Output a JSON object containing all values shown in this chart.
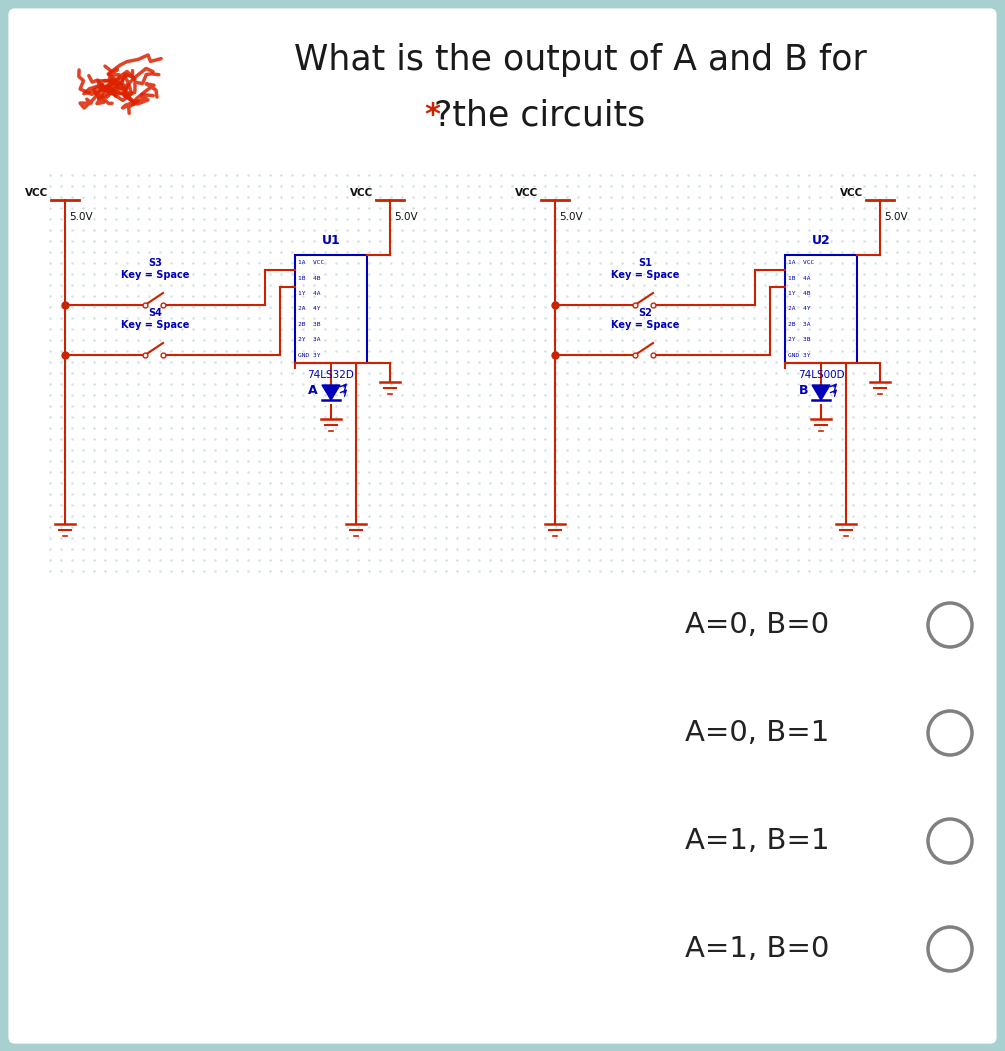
{
  "title_line1": "What is the output of A and B for",
  "title_line2": "?the circuits",
  "title_color": "#1a1a1a",
  "star_color": "#cc2200",
  "bg_color": "#a8d0d0",
  "circuit_color": "#cc2200",
  "blue_color": "#0000bb",
  "options": [
    "A=0, B=0",
    "A=0, B=1",
    "A=1, B=1",
    "A=1, B=0"
  ],
  "ic_label_left": "U1",
  "ic_label_right": "U2",
  "ic_type_left": "74LS32D",
  "ic_type_right": "74LS00D",
  "ic_pins_left": [
    "1A  VCC",
    "1B  4B",
    "1Y  4A",
    "2A  4Y",
    "2B  3B",
    "2Y  3A",
    "GND 3Y"
  ],
  "ic_pins_right": [
    "1A  VCC",
    "1B  4A",
    "1Y  4B",
    "2A  4Y",
    "2B  3A",
    "2Y  3B",
    "GND 3Y"
  ]
}
